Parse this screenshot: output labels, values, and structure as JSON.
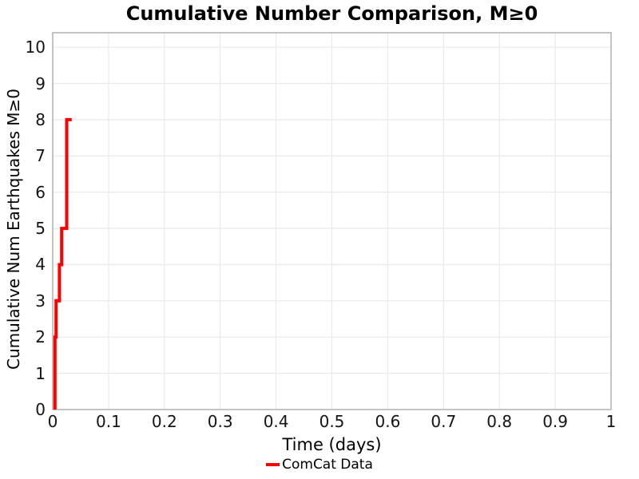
{
  "colors": {
    "line": "#ff0000",
    "grid": "#ebebeb",
    "spine": "#b0b0b0",
    "tick_text": "#141414",
    "background": "#ffffff"
  },
  "chart_data": {
    "type": "line",
    "style": "step",
    "title": "Cumulative Number Comparison, M≥0",
    "xlabel": "Time (days)",
    "ylabel": "Cumulative Num Earthquakes M≥0",
    "xlim": [
      0,
      1
    ],
    "ylim": [
      0,
      10.4
    ],
    "grid": true,
    "legend_position": "bottom-center",
    "x_ticks": [
      0,
      0.1,
      0.2,
      0.3,
      0.4,
      0.5,
      0.6,
      0.7,
      0.8,
      0.9,
      1
    ],
    "x_tick_labels": [
      "0",
      "0.1",
      "0.2",
      "0.3",
      "0.4",
      "0.5",
      "0.6",
      "0.7",
      "0.8",
      "0.9",
      "1"
    ],
    "y_ticks": [
      0,
      1,
      2,
      3,
      4,
      5,
      6,
      7,
      8,
      9,
      10
    ],
    "y_tick_labels": [
      "0",
      "1",
      "2",
      "3",
      "4",
      "5",
      "6",
      "7",
      "8",
      "9",
      "10"
    ],
    "series": [
      {
        "name": "ComCat Data",
        "color": "#ff0000",
        "line_width": 4,
        "points": [
          [
            0.004,
            0
          ],
          [
            0.004,
            2
          ],
          [
            0.006,
            2
          ],
          [
            0.006,
            3
          ],
          [
            0.012,
            3
          ],
          [
            0.012,
            4
          ],
          [
            0.016,
            4
          ],
          [
            0.016,
            5
          ],
          [
            0.025,
            5
          ],
          [
            0.025,
            8
          ],
          [
            0.034,
            8
          ]
        ]
      }
    ]
  },
  "legend": {
    "items": [
      {
        "label": "ComCat Data",
        "color": "#ff0000"
      }
    ]
  }
}
